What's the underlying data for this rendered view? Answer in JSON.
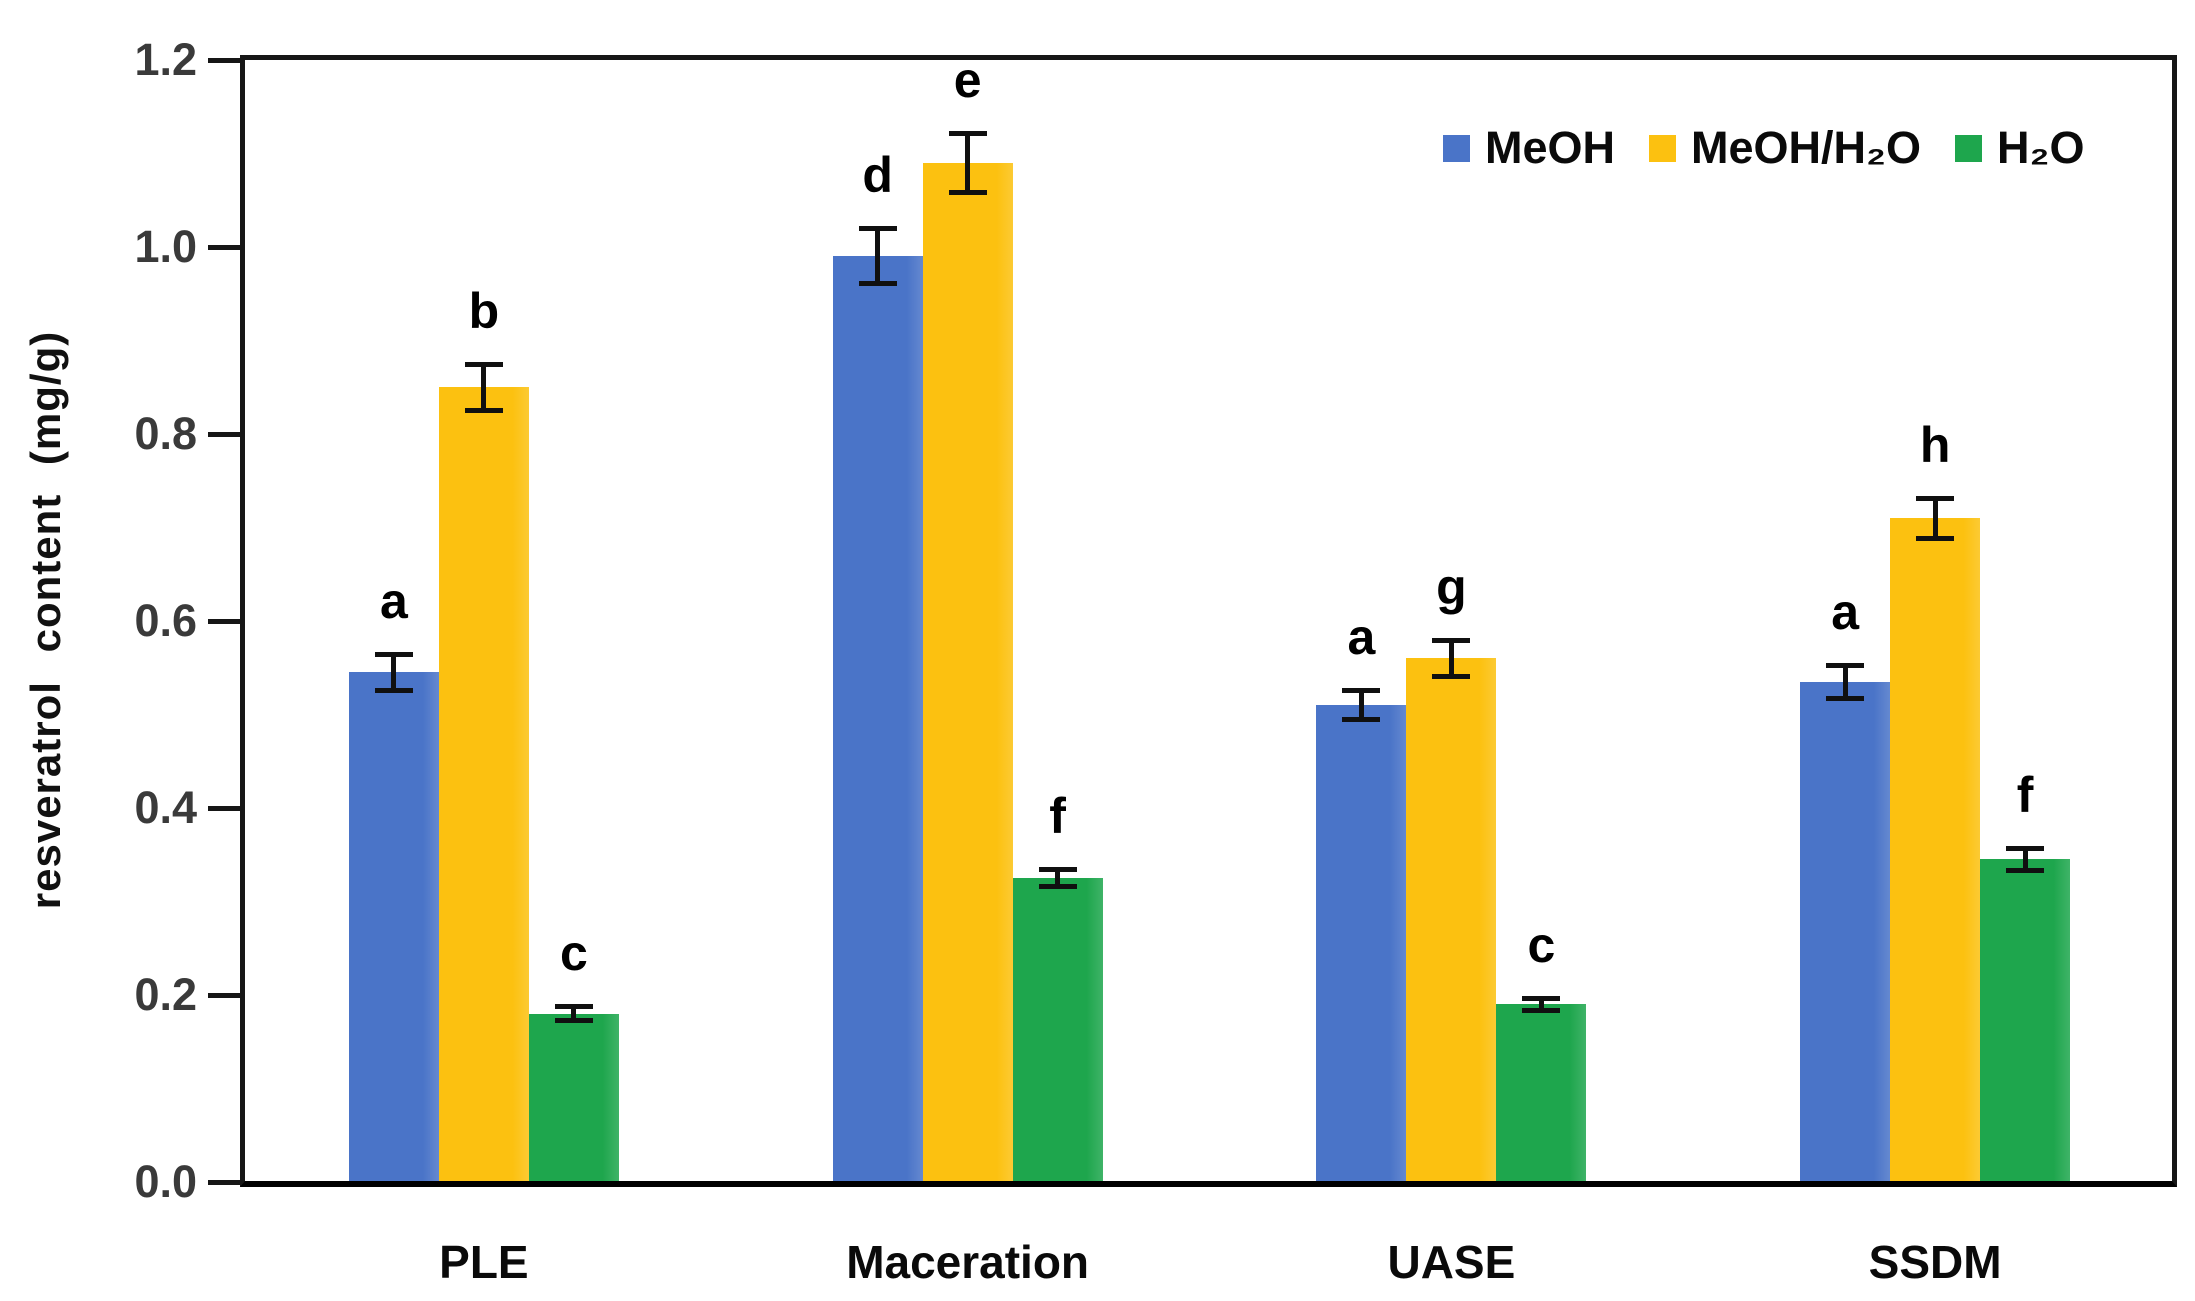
{
  "chart_data": {
    "type": "bar",
    "title": "",
    "xlabel": "",
    "ylabel": "resveratrol content (mg/g)",
    "ylim": [
      0,
      1.2
    ],
    "yticks": [
      0.0,
      0.2,
      0.4,
      0.6,
      0.8,
      1.0,
      1.2
    ],
    "ytick_labels": [
      "0.0",
      "0.2",
      "0.4",
      "0.6",
      "0.8",
      "1.0",
      "1.2"
    ],
    "categories": [
      "PLE",
      "Maceration",
      "UASE",
      "SSDM"
    ],
    "grid": false,
    "legend_position": "top-right-inside",
    "error_bars": true,
    "series": [
      {
        "name": "MeOH",
        "color": "#4a74c8",
        "values": [
          0.545,
          0.99,
          0.51,
          0.535
        ],
        "errors": [
          0.02,
          0.03,
          0.016,
          0.018
        ],
        "letters": [
          "a",
          "d",
          "a",
          "a"
        ]
      },
      {
        "name": "MeOH/H₂O",
        "color": "#fcc110",
        "values": [
          0.85,
          1.09,
          0.56,
          0.71
        ],
        "errors": [
          0.025,
          0.032,
          0.02,
          0.022
        ],
        "letters": [
          "b",
          "e",
          "g",
          "h"
        ]
      },
      {
        "name": "H₂O",
        "color": "#1ea64d",
        "values": [
          0.18,
          0.325,
          0.19,
          0.345
        ],
        "errors": [
          0.008,
          0.01,
          0.007,
          0.012
        ],
        "letters": [
          "c",
          "f",
          "c",
          "f"
        ]
      }
    ]
  },
  "colors": {
    "axis": "#161616",
    "tick_text": "#3a3a3a",
    "label_text": "#0a0a0a",
    "background": "#ffffff"
  }
}
